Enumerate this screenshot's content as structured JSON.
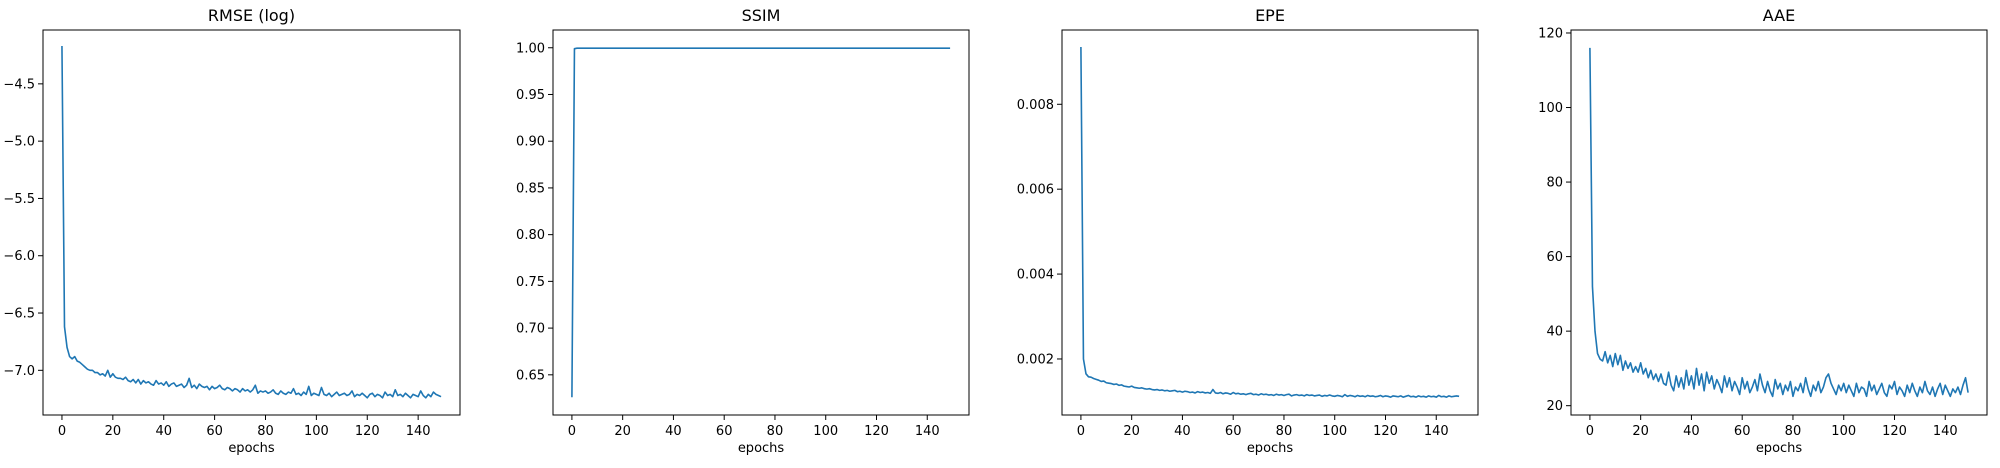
{
  "chart_data": [
    {
      "type": "line",
      "title": "RMSE (log)",
      "xlabel": "epochs",
      "ylabel": "",
      "xlim": [
        -7.45,
        156.45
      ],
      "ylim": [
        -7.39,
        -4.03
      ],
      "xticks": [
        0,
        20,
        40,
        60,
        80,
        100,
        120,
        140
      ],
      "xtick_labels": [
        "0",
        "20",
        "40",
        "60",
        "80",
        "100",
        "120",
        "140"
      ],
      "yticks": [
        -7.0,
        -6.5,
        -6.0,
        -5.5,
        -5.0,
        -4.5
      ],
      "ytick_labels": [
        "−7.0",
        "−6.5",
        "−6.0",
        "−5.5",
        "−5.0",
        "−4.5"
      ],
      "line_color": "#1f77b4",
      "grid": false,
      "series": [
        {
          "x": [
            0,
            1,
            2,
            3,
            4,
            5,
            6,
            7,
            8,
            9,
            10,
            11,
            12,
            13,
            14,
            15,
            16,
            17,
            18,
            19,
            20,
            21,
            22,
            23,
            24,
            25,
            26,
            27,
            28,
            29,
            30,
            31,
            32,
            33,
            34,
            35,
            36,
            37,
            38,
            39,
            40,
            41,
            42,
            43,
            44,
            45,
            46,
            47,
            48,
            49,
            50,
            51,
            52,
            53,
            54,
            55,
            56,
            57,
            58,
            59,
            60,
            61,
            62,
            63,
            64,
            65,
            66,
            67,
            68,
            69,
            70,
            71,
            72,
            73,
            74,
            75,
            76,
            77,
            78,
            79,
            80,
            81,
            82,
            83,
            84,
            85,
            86,
            87,
            88,
            89,
            90,
            91,
            92,
            93,
            94,
            95,
            96,
            97,
            98,
            99,
            100,
            101,
            102,
            103,
            104,
            105,
            106,
            107,
            108,
            109,
            110,
            111,
            112,
            113,
            114,
            115,
            116,
            117,
            118,
            119,
            120,
            121,
            122,
            123,
            124,
            125,
            126,
            127,
            128,
            129,
            130,
            131,
            132,
            133,
            134,
            135,
            136,
            137,
            138,
            139,
            140,
            141,
            142,
            143,
            144,
            145,
            146,
            147,
            148,
            149
          ],
          "y": [
            -4.17,
            -6.62,
            -6.8,
            -6.88,
            -6.9,
            -6.88,
            -6.92,
            -6.93,
            -6.95,
            -6.97,
            -6.99,
            -7.0,
            -7.0,
            -7.02,
            -7.02,
            -7.04,
            -7.03,
            -7.05,
            -7.0,
            -7.06,
            -7.03,
            -7.06,
            -7.07,
            -7.07,
            -7.08,
            -7.06,
            -7.09,
            -7.1,
            -7.08,
            -7.11,
            -7.08,
            -7.12,
            -7.09,
            -7.11,
            -7.1,
            -7.12,
            -7.13,
            -7.09,
            -7.12,
            -7.11,
            -7.13,
            -7.1,
            -7.14,
            -7.12,
            -7.11,
            -7.14,
            -7.13,
            -7.12,
            -7.15,
            -7.13,
            -7.07,
            -7.15,
            -7.13,
            -7.16,
            -7.12,
            -7.14,
            -7.15,
            -7.14,
            -7.17,
            -7.14,
            -7.16,
            -7.15,
            -7.13,
            -7.16,
            -7.17,
            -7.15,
            -7.16,
            -7.18,
            -7.16,
            -7.17,
            -7.19,
            -7.16,
            -7.18,
            -7.17,
            -7.19,
            -7.17,
            -7.13,
            -7.2,
            -7.18,
            -7.19,
            -7.18,
            -7.2,
            -7.19,
            -7.17,
            -7.2,
            -7.21,
            -7.18,
            -7.2,
            -7.21,
            -7.19,
            -7.2,
            -7.16,
            -7.21,
            -7.2,
            -7.22,
            -7.19,
            -7.21,
            -7.14,
            -7.22,
            -7.2,
            -7.21,
            -7.22,
            -7.15,
            -7.21,
            -7.22,
            -7.2,
            -7.23,
            -7.21,
            -7.19,
            -7.22,
            -7.21,
            -7.2,
            -7.22,
            -7.21,
            -7.18,
            -7.23,
            -7.21,
            -7.22,
            -7.2,
            -7.22,
            -7.24,
            -7.21,
            -7.2,
            -7.23,
            -7.21,
            -7.22,
            -7.24,
            -7.19,
            -7.22,
            -7.21,
            -7.23,
            -7.17,
            -7.22,
            -7.21,
            -7.23,
            -7.2,
            -7.22,
            -7.24,
            -7.21,
            -7.22,
            -7.23,
            -7.18,
            -7.22,
            -7.24,
            -7.21,
            -7.23,
            -7.19,
            -7.21,
            -7.22,
            -7.23
          ]
        }
      ]
    },
    {
      "type": "line",
      "title": "SSIM",
      "xlabel": "epochs",
      "ylabel": "",
      "xlim": [
        -7.45,
        156.45
      ],
      "ylim": [
        0.607,
        1.019
      ],
      "xticks": [
        0,
        20,
        40,
        60,
        80,
        100,
        120,
        140
      ],
      "xtick_labels": [
        "0",
        "20",
        "40",
        "60",
        "80",
        "100",
        "120",
        "140"
      ],
      "yticks": [
        0.65,
        0.7,
        0.75,
        0.8,
        0.85,
        0.9,
        0.95,
        1.0
      ],
      "ytick_labels": [
        "0.65",
        "0.70",
        "0.75",
        "0.80",
        "0.85",
        "0.90",
        "0.95",
        "1.00"
      ],
      "line_color": "#1f77b4",
      "grid": false,
      "series": [
        {
          "x": [
            0,
            1,
            2,
            149
          ],
          "y": [
            0.626,
            0.999,
            0.9995,
            0.9995
          ]
        }
      ]
    },
    {
      "type": "line",
      "title": "EPE",
      "xlabel": "epochs",
      "ylabel": "",
      "xlim": [
        -7.45,
        156.45
      ],
      "ylim": [
        0.00068,
        0.00975
      ],
      "xticks": [
        0,
        20,
        40,
        60,
        80,
        100,
        120,
        140
      ],
      "xtick_labels": [
        "0",
        "20",
        "40",
        "60",
        "80",
        "100",
        "120",
        "140"
      ],
      "yticks": [
        0.002,
        0.004,
        0.006,
        0.008
      ],
      "ytick_labels": [
        "0.002",
        "0.004",
        "0.006",
        "0.008"
      ],
      "line_color": "#1f77b4",
      "grid": false,
      "series": [
        {
          "x": [
            0,
            1,
            2,
            3,
            4,
            5,
            6,
            7,
            8,
            9,
            10,
            11,
            12,
            13,
            14,
            15,
            16,
            17,
            18,
            19,
            20,
            21,
            22,
            23,
            24,
            25,
            26,
            27,
            28,
            29,
            30,
            31,
            32,
            33,
            34,
            35,
            36,
            37,
            38,
            39,
            40,
            41,
            42,
            43,
            44,
            45,
            46,
            47,
            48,
            49,
            50,
            51,
            52,
            53,
            54,
            55,
            56,
            57,
            58,
            59,
            60,
            61,
            62,
            63,
            64,
            65,
            66,
            67,
            68,
            69,
            70,
            71,
            72,
            73,
            74,
            75,
            76,
            77,
            78,
            79,
            80,
            81,
            82,
            83,
            84,
            85,
            86,
            87,
            88,
            89,
            90,
            91,
            92,
            93,
            94,
            95,
            96,
            97,
            98,
            99,
            100,
            101,
            102,
            103,
            104,
            105,
            106,
            107,
            108,
            109,
            110,
            111,
            112,
            113,
            114,
            115,
            116,
            117,
            118,
            119,
            120,
            121,
            122,
            123,
            124,
            125,
            126,
            127,
            128,
            129,
            130,
            131,
            132,
            133,
            134,
            135,
            136,
            137,
            138,
            139,
            140,
            141,
            142,
            143,
            144,
            145,
            146,
            147,
            148,
            149
          ],
          "y": [
            0.00935,
            0.002,
            0.00165,
            0.00158,
            0.00157,
            0.00154,
            0.00152,
            0.0015,
            0.00147,
            0.00148,
            0.00144,
            0.00143,
            0.00142,
            0.0014,
            0.00141,
            0.00138,
            0.00139,
            0.00136,
            0.00135,
            0.00134,
            0.00136,
            0.00133,
            0.00132,
            0.00131,
            0.00132,
            0.0013,
            0.00129,
            0.0013,
            0.00128,
            0.00127,
            0.00128,
            0.00126,
            0.00127,
            0.00125,
            0.00126,
            0.00124,
            0.00125,
            0.00126,
            0.00123,
            0.00124,
            0.00122,
            0.00124,
            0.00123,
            0.00121,
            0.00122,
            0.0012,
            0.00123,
            0.00121,
            0.00122,
            0.0012,
            0.00121,
            0.00119,
            0.00128,
            0.0012,
            0.00119,
            0.00121,
            0.00118,
            0.0012,
            0.00119,
            0.00117,
            0.00121,
            0.00118,
            0.00119,
            0.00117,
            0.00118,
            0.00116,
            0.00118,
            0.00119,
            0.00116,
            0.00117,
            0.00115,
            0.00118,
            0.00116,
            0.00117,
            0.00115,
            0.00116,
            0.00114,
            0.00117,
            0.00115,
            0.00116,
            0.00114,
            0.00116,
            0.00117,
            0.00113,
            0.00115,
            0.00116,
            0.00114,
            0.00115,
            0.00113,
            0.00116,
            0.00114,
            0.00115,
            0.00113,
            0.00114,
            0.00115,
            0.00112,
            0.00114,
            0.00113,
            0.00115,
            0.00113,
            0.00112,
            0.00114,
            0.00113,
            0.00111,
            0.00116,
            0.00112,
            0.00114,
            0.00113,
            0.00111,
            0.00114,
            0.00112,
            0.00113,
            0.00111,
            0.00114,
            0.00112,
            0.00113,
            0.00111,
            0.00112,
            0.00114,
            0.00111,
            0.00113,
            0.00112,
            0.0011,
            0.00113,
            0.00112,
            0.00111,
            0.00113,
            0.0011,
            0.00112,
            0.00114,
            0.00111,
            0.00112,
            0.0011,
            0.00113,
            0.00111,
            0.00112,
            0.0011,
            0.00113,
            0.00111,
            0.00112,
            0.0011,
            0.00114,
            0.00111,
            0.00112,
            0.0011,
            0.00113,
            0.00111,
            0.00112,
            0.00113,
            0.00112
          ]
        }
      ]
    },
    {
      "type": "line",
      "title": "AAE",
      "xlabel": "epochs",
      "ylabel": "",
      "xlim": [
        -7.45,
        156.45
      ],
      "ylim": [
        17.5,
        120.8
      ],
      "xticks": [
        0,
        20,
        40,
        60,
        80,
        100,
        120,
        140
      ],
      "xtick_labels": [
        "0",
        "20",
        "40",
        "60",
        "80",
        "100",
        "120",
        "140"
      ],
      "yticks": [
        20,
        40,
        60,
        80,
        100,
        120
      ],
      "ytick_labels": [
        "20",
        "40",
        "60",
        "80",
        "100",
        "120"
      ],
      "line_color": "#1f77b4",
      "grid": false,
      "series": [
        {
          "x": [
            0,
            1,
            2,
            3,
            4,
            5,
            6,
            7,
            8,
            9,
            10,
            11,
            12,
            13,
            14,
            15,
            16,
            17,
            18,
            19,
            20,
            21,
            22,
            23,
            24,
            25,
            26,
            27,
            28,
            29,
            30,
            31,
            32,
            33,
            34,
            35,
            36,
            37,
            38,
            39,
            40,
            41,
            42,
            43,
            44,
            45,
            46,
            47,
            48,
            49,
            50,
            51,
            52,
            53,
            54,
            55,
            56,
            57,
            58,
            59,
            60,
            61,
            62,
            63,
            64,
            65,
            66,
            67,
            68,
            69,
            70,
            71,
            72,
            73,
            74,
            75,
            76,
            77,
            78,
            79,
            80,
            81,
            82,
            83,
            84,
            85,
            86,
            87,
            88,
            89,
            90,
            91,
            92,
            93,
            94,
            95,
            96,
            97,
            98,
            99,
            100,
            101,
            102,
            103,
            104,
            105,
            106,
            107,
            108,
            109,
            110,
            111,
            112,
            113,
            114,
            115,
            116,
            117,
            118,
            119,
            120,
            121,
            122,
            123,
            124,
            125,
            126,
            127,
            128,
            129,
            130,
            131,
            132,
            133,
            134,
            135,
            136,
            137,
            138,
            139,
            140,
            141,
            142,
            143,
            144,
            145,
            146,
            147,
            148,
            149
          ],
          "y": [
            116.0,
            52.0,
            40.0,
            34.0,
            32.5,
            32.0,
            34.5,
            31.5,
            33.5,
            30.5,
            34.0,
            31.0,
            33.5,
            29.5,
            32.0,
            30.0,
            31.5,
            29.0,
            30.5,
            29.0,
            31.5,
            28.5,
            30.0,
            27.5,
            29.5,
            27.0,
            28.5,
            26.5,
            28.5,
            26.0,
            25.5,
            29.0,
            25.5,
            24.0,
            28.0,
            25.0,
            27.5,
            24.5,
            29.5,
            25.5,
            28.0,
            24.5,
            30.0,
            25.5,
            28.5,
            24.0,
            29.0,
            26.0,
            28.0,
            24.5,
            27.0,
            25.5,
            23.5,
            28.0,
            25.0,
            27.5,
            24.0,
            26.5,
            25.0,
            23.0,
            27.5,
            24.5,
            26.5,
            23.5,
            25.0,
            27.0,
            24.0,
            28.5,
            25.5,
            23.5,
            26.5,
            24.0,
            22.5,
            27.0,
            24.5,
            26.0,
            23.0,
            25.5,
            24.0,
            26.5,
            22.5,
            25.0,
            24.0,
            26.0,
            23.5,
            27.5,
            24.5,
            22.5,
            25.5,
            24.0,
            26.5,
            23.5,
            25.0,
            27.5,
            28.5,
            26.0,
            24.5,
            23.0,
            25.5,
            24.0,
            26.0,
            23.5,
            25.5,
            24.0,
            22.5,
            26.0,
            23.5,
            25.0,
            24.5,
            22.5,
            26.5,
            24.0,
            25.5,
            23.0,
            24.5,
            26.0,
            23.5,
            22.5,
            25.5,
            24.5,
            26.5,
            23.0,
            25.0,
            24.0,
            22.5,
            25.5,
            23.5,
            26.0,
            24.0,
            22.5,
            25.0,
            23.5,
            26.5,
            24.0,
            23.0,
            25.0,
            22.5,
            24.5,
            26.0,
            23.0,
            25.5,
            24.0,
            22.5,
            24.5,
            23.5,
            25.0,
            23.0,
            25.5,
            27.5,
            23.5
          ]
        }
      ]
    }
  ]
}
